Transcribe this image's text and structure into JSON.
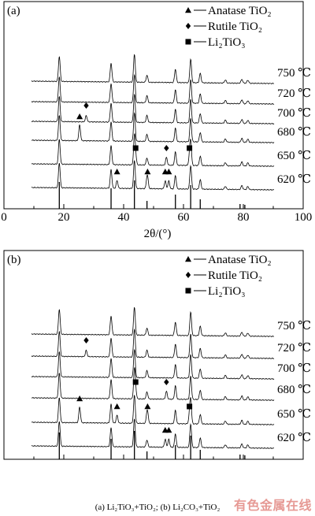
{
  "caption": "(a) Li₂TiO₃+TiO₂; (b) Li₂CO₃+TiO₂",
  "watermark": "有色金属在线",
  "colors": {
    "line": "#000000",
    "background": "#ffffff",
    "watermark": "#d2463c"
  },
  "chart_data": [
    {
      "type": "line",
      "panel_label": "(a)",
      "xlabel": "2θ/(°)",
      "xlim": [
        0,
        100
      ],
      "x_ticks": [
        "0",
        "20",
        "40",
        "60",
        "80",
        "100"
      ],
      "legend": [
        {
          "marker": "triangle",
          "label": "Anatase TiO₂"
        },
        {
          "marker": "diamond",
          "label": "Rutile TiO₂"
        },
        {
          "marker": "square",
          "label": "Li₂TiO₃"
        }
      ],
      "legend_position": "top-right",
      "series": [
        {
          "name": "750 ℃"
        },
        {
          "name": "720 ℃"
        },
        {
          "name": "700 ℃"
        },
        {
          "name": "680 ℃"
        },
        {
          "name": "650 ℃"
        },
        {
          "name": "620 ℃"
        }
      ],
      "reference_peaks": [
        18.5,
        35.8,
        43.6,
        47.8,
        57.3,
        62.4,
        65.6,
        78.9,
        80.5
      ],
      "phase_markers": [
        {
          "phase": "diamond",
          "series": "700 ℃",
          "x": 27.5
        },
        {
          "phase": "triangle",
          "series": "680 ℃",
          "x": 25.3
        },
        {
          "phase": "square",
          "series": "650 ℃",
          "x": 44.0
        },
        {
          "phase": "diamond",
          "series": "650 ℃",
          "x": 54.3
        },
        {
          "phase": "square",
          "series": "650 ℃",
          "x": 62.0
        },
        {
          "phase": "triangle",
          "series": "620 ℃",
          "x": 37.8
        },
        {
          "phase": "triangle",
          "series": "620 ℃",
          "x": 48.0
        },
        {
          "phase": "triangle",
          "series": "620 ℃",
          "x": 53.9
        },
        {
          "phase": "triangle",
          "series": "620 ℃",
          "x": 55.1
        }
      ]
    },
    {
      "type": "line",
      "panel_label": "(b)",
      "xlabel": "",
      "xlim": [
        0,
        100
      ],
      "x_ticks": [],
      "legend": [
        {
          "marker": "triangle",
          "label": "Anatase TiO₂"
        },
        {
          "marker": "diamond",
          "label": "Rutile TiO₂"
        },
        {
          "marker": "square",
          "label": "Li₂TiO₃"
        }
      ],
      "legend_position": "top-right",
      "series": [
        {
          "name": "750 ℃"
        },
        {
          "name": "720 ℃"
        },
        {
          "name": "700 ℃"
        },
        {
          "name": "680 ℃"
        },
        {
          "name": "650 ℃"
        },
        {
          "name": "620 ℃"
        }
      ],
      "reference_peaks": [
        18.5,
        35.8,
        43.6,
        47.8,
        57.3,
        62.4,
        65.6,
        78.9,
        80.5
      ],
      "phase_markers": [
        {
          "phase": "diamond",
          "series": "720 ℃",
          "x": 27.5
        },
        {
          "phase": "square",
          "series": "680 ℃",
          "x": 44.0
        },
        {
          "phase": "diamond",
          "series": "680 ℃",
          "x": 54.3
        },
        {
          "phase": "triangle",
          "series": "650 ℃",
          "x": 25.3
        },
        {
          "phase": "triangle",
          "series": "650 ℃",
          "x": 37.8
        },
        {
          "phase": "triangle",
          "series": "650 ℃",
          "x": 48.0
        },
        {
          "phase": "square",
          "series": "650 ℃",
          "x": 62.0
        },
        {
          "phase": "triangle",
          "series": "620 ℃",
          "x": 53.9
        },
        {
          "phase": "triangle",
          "series": "620 ℃",
          "x": 55.1
        }
      ]
    }
  ]
}
